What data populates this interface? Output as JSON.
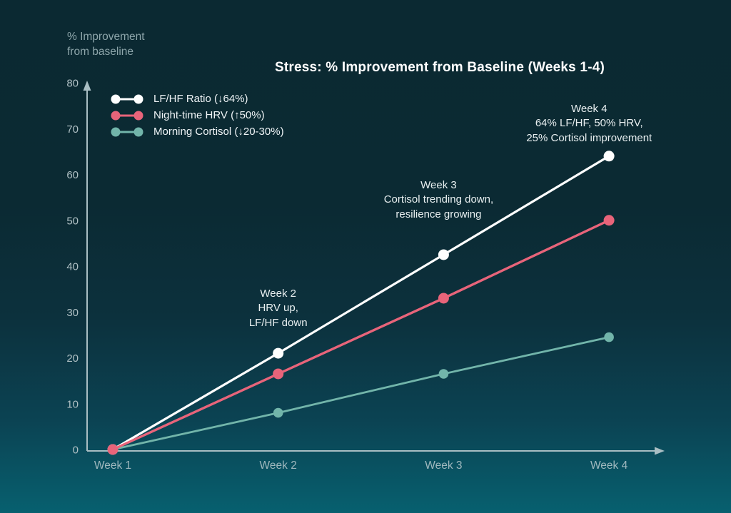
{
  "page": {
    "background_top": "#0b2932",
    "background_bottom": "#07606f"
  },
  "header": {
    "title": "Stress: % Improvement from Baseline (Weeks 1-4)"
  },
  "y_axis_label": {
    "line1": "% Improvement",
    "line2": "from baseline"
  },
  "chart_data": {
    "type": "line",
    "title": "Stress: % Improvement from Baseline (Weeks 1-4)",
    "xlabel": "",
    "ylabel": "% Improvement from baseline",
    "ylim": [
      0,
      80
    ],
    "y_ticks": [
      0,
      10,
      20,
      30,
      40,
      50,
      60,
      70,
      80
    ],
    "categories": [
      "Week 1",
      "Week 2",
      "Week 3",
      "Week 4"
    ],
    "grid": false,
    "legend_position": "top-left",
    "series": [
      {
        "name": "LF/HF Ratio (↓64%)",
        "color": "#ffffff",
        "values": [
          0,
          21,
          42.5,
          64
        ]
      },
      {
        "name": "Night-time HRV (↑50%)",
        "color": "#e8647a",
        "values": [
          0,
          16.5,
          33,
          50
        ]
      },
      {
        "name": "Morning Cortisol (↓20-30%)",
        "color": "#72b5aa",
        "values": [
          0,
          8,
          16.5,
          24.5
        ]
      }
    ],
    "annotations": [
      {
        "lines": [
          "Week 2",
          "HRV up,",
          "LF/HF down"
        ],
        "x": 1.0,
        "y": 35.5
      },
      {
        "lines": [
          "Week 3",
          "Cortisol trending down,",
          "resilience growing"
        ],
        "x": 1.97,
        "y": 59.2
      },
      {
        "lines": [
          "Week 4",
          "64% LF/HF, 50% HRV,",
          "25% Cortisol improvement"
        ],
        "x": 2.88,
        "y": 75.8
      }
    ],
    "axis_color": "#a9bec3",
    "tick_label_color": "#b0c0c4",
    "category_label_color": "#9fb8be"
  }
}
